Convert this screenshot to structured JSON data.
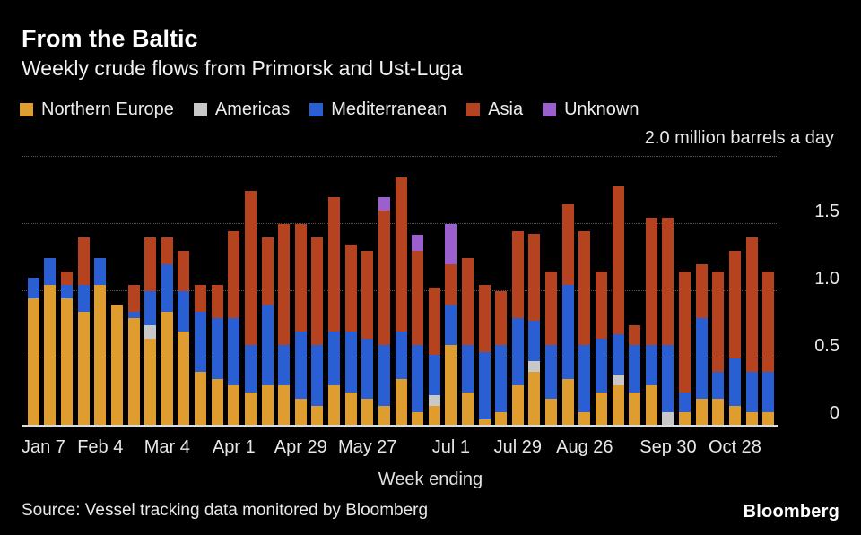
{
  "header": {
    "title": "From the Baltic",
    "subtitle": "Weekly crude flows from Primorsk and Ust-Luga"
  },
  "legend": {
    "items": [
      {
        "label": "Northern Europe",
        "color": "#e09d2f"
      },
      {
        "label": "Americas",
        "color": "#c8c8c8"
      },
      {
        "label": "Mediterranean",
        "color": "#2a5fd3"
      },
      {
        "label": "Asia",
        "color": "#b5431f"
      },
      {
        "label": "Unknown",
        "color": "#9b5fce"
      }
    ]
  },
  "axis": {
    "y_top_label": "2.0 million barrels a day",
    "y_ticks": [
      {
        "label": "1.5",
        "value": 1.5
      },
      {
        "label": "1.0",
        "value": 1.0
      },
      {
        "label": "0.5",
        "value": 0.5
      },
      {
        "label": "0",
        "value": 0
      }
    ],
    "gridline_values": [
      2.0,
      1.5,
      1.0,
      0.5
    ],
    "x_label": "Week ending",
    "x_ticks": [
      {
        "label": "Jan 7",
        "index": 0
      },
      {
        "label": "Feb 4",
        "index": 4
      },
      {
        "label": "Mar 4",
        "index": 8
      },
      {
        "label": "Apr 1",
        "index": 12
      },
      {
        "label": "Apr 29",
        "index": 16
      },
      {
        "label": "May 27",
        "index": 20
      },
      {
        "label": "Jul 1",
        "index": 25
      },
      {
        "label": "Jul 29",
        "index": 29
      },
      {
        "label": "Aug 26",
        "index": 33
      },
      {
        "label": "Sep 30",
        "index": 38
      },
      {
        "label": "Oct 28",
        "index": 42
      }
    ]
  },
  "footer": {
    "source": "Source: Vessel tracking data monitored by Bloomberg",
    "logo": "Bloomberg"
  },
  "chart_data": {
    "type": "bar",
    "stacked": true,
    "title": "From the Baltic",
    "subtitle": "Weekly crude flows from Primorsk and Ust-Luga",
    "ylabel": "million barrels a day",
    "xlabel": "Week ending",
    "ylim": [
      0,
      2.0
    ],
    "grid": true,
    "legend_position": "top",
    "x": [
      "Jan 7",
      "Jan 14",
      "Jan 21",
      "Jan 28",
      "Feb 4",
      "Feb 11",
      "Feb 18",
      "Feb 25",
      "Mar 4",
      "Mar 11",
      "Mar 18",
      "Mar 25",
      "Apr 1",
      "Apr 8",
      "Apr 15",
      "Apr 22",
      "Apr 29",
      "May 6",
      "May 13",
      "May 20",
      "May 27",
      "Jun 3",
      "Jun 10",
      "Jun 17",
      "Jun 24",
      "Jul 1",
      "Jul 8",
      "Jul 15",
      "Jul 22",
      "Jul 29",
      "Aug 5",
      "Aug 12",
      "Aug 19",
      "Aug 26",
      "Sep 2",
      "Sep 9",
      "Sep 16",
      "Sep 23",
      "Sep 30",
      "Oct 7",
      "Oct 14",
      "Oct 21",
      "Oct 28",
      "Nov 4",
      "Nov 11"
    ],
    "series": [
      {
        "name": "Northern Europe",
        "color": "#e09d2f",
        "values": [
          0.95,
          1.05,
          0.95,
          0.85,
          1.05,
          0.9,
          0.8,
          0.65,
          0.85,
          0.7,
          0.4,
          0.35,
          0.3,
          0.25,
          0.3,
          0.3,
          0.2,
          0.15,
          0.3,
          0.25,
          0.2,
          0.15,
          0.35,
          0.1,
          0.15,
          0.6,
          0.25,
          0.05,
          0.1,
          0.3,
          0.4,
          0.2,
          0.35,
          0.1,
          0.25,
          0.3,
          0.25,
          0.3,
          0,
          0.1,
          0.2,
          0.2,
          0.15,
          0.1,
          0.1
        ]
      },
      {
        "name": "Americas",
        "color": "#c8c8c8",
        "values": [
          0,
          0,
          0,
          0,
          0,
          0,
          0,
          0.1,
          0,
          0,
          0,
          0,
          0,
          0,
          0,
          0,
          0,
          0,
          0,
          0,
          0,
          0,
          0,
          0,
          0.08,
          0,
          0,
          0,
          0,
          0,
          0.08,
          0,
          0,
          0,
          0,
          0.08,
          0,
          0,
          0.1,
          0,
          0,
          0,
          0,
          0,
          0
        ]
      },
      {
        "name": "Mediterranean",
        "color": "#2a5fd3",
        "values": [
          0.15,
          0.2,
          0.1,
          0.2,
          0.2,
          0,
          0.05,
          0.25,
          0.35,
          0.3,
          0.45,
          0.45,
          0.5,
          0.35,
          0.6,
          0.3,
          0.5,
          0.45,
          0.4,
          0.45,
          0.45,
          0.45,
          0.35,
          0.5,
          0.3,
          0.3,
          0.35,
          0.5,
          0.5,
          0.5,
          0.3,
          0.4,
          0.7,
          0.5,
          0.4,
          0.3,
          0.35,
          0.3,
          0.5,
          0.15,
          0.6,
          0.2,
          0.35,
          0.3,
          0.3
        ]
      },
      {
        "name": "Asia",
        "color": "#b5431f",
        "values": [
          0,
          0,
          0.1,
          0.35,
          0,
          0,
          0.2,
          0.4,
          0.2,
          0.3,
          0.2,
          0.25,
          0.65,
          1.15,
          0.5,
          0.9,
          0.8,
          0.8,
          1.0,
          0.65,
          0.65,
          1.0,
          1.15,
          0.7,
          0.5,
          0.3,
          0.65,
          0.5,
          0.4,
          0.65,
          0.65,
          0.55,
          0.6,
          0.85,
          0.5,
          1.1,
          0.15,
          0.95,
          0.95,
          0.9,
          0.4,
          0.75,
          0.8,
          1.0,
          0.75
        ]
      },
      {
        "name": "Unknown",
        "color": "#9b5fce",
        "values": [
          0,
          0,
          0,
          0,
          0,
          0,
          0,
          0,
          0,
          0,
          0,
          0,
          0,
          0,
          0,
          0,
          0,
          0,
          0,
          0,
          0,
          0.1,
          0,
          0.12,
          0,
          0.3,
          0,
          0,
          0,
          0,
          0,
          0,
          0,
          0,
          0,
          0,
          0,
          0,
          0,
          0,
          0,
          0,
          0,
          0,
          0
        ]
      }
    ]
  }
}
